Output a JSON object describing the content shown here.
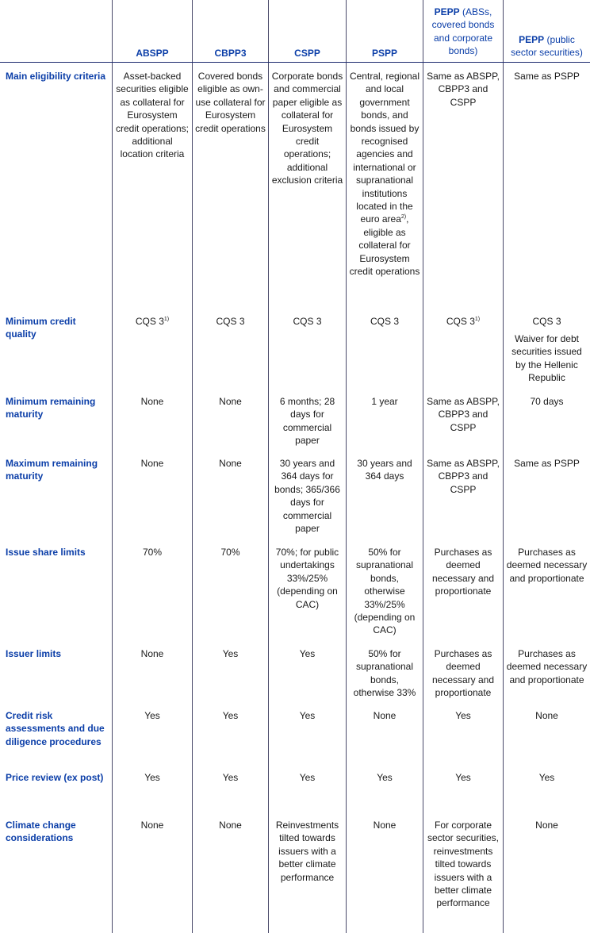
{
  "header": {
    "abspp": "ABSPP",
    "cbpp3": "CBPP3",
    "cspp": "CSPP",
    "pspp": "PSPP",
    "pepp_a_bold": "PEPP",
    "pepp_a_rest": " (ABSs, covered bonds and corporate bonds)",
    "pepp_b_bold": "PEPP",
    "pepp_b_rest": " (public sector securities)"
  },
  "rows": [
    {
      "label": "Main eligibility criteria",
      "abspp": "Asset-backed securities eligible as collateral for Eurosystem credit operations; additional location criteria",
      "cbpp3": "Covered bonds eligible as own-use collateral for Eurosystem credit operations",
      "cspp": "Corporate bonds and commercial paper eligible as collateral for Eurosystem credit operations; additional exclusion criteria",
      "pspp_a": "Central, regional and local government bonds, and bonds issued by recognised agencies and international or supranational institutions located in the euro area",
      "pspp_sup": "2)",
      "pspp_b": ", eligible as collateral for Eurosystem credit operations",
      "pepp_a": "Same as ABSPP, CBPP3 and CSPP",
      "pepp_b": "Same as PSPP"
    },
    {
      "label": "Minimum credit quality",
      "abspp": "CQS 3",
      "abspp_sup": "1)",
      "cbpp3": "CQS 3",
      "cspp": "CQS 3",
      "pspp": "CQS 3",
      "pepp_a": "CQS 3",
      "pepp_a_sup": "1)",
      "pepp_b": "CQS 3",
      "pepp_b_note": "Waiver for debt securities issued by the Hellenic Republic"
    },
    {
      "label": "Minimum remaining maturity",
      "abspp": "None",
      "cbpp3": "None",
      "cspp": "6 months; 28 days for commercial paper",
      "pspp": "1 year",
      "pepp_a": "Same as ABSPP, CBPP3 and CSPP",
      "pepp_b": "70 days"
    },
    {
      "label": "Maximum remaining maturity",
      "abspp": "None",
      "cbpp3": "None",
      "cspp": "30 years and 364 days for bonds; 365/366 days for commercial paper",
      "pspp": "30 years and 364 days",
      "pepp_a": "Same as ABSPP, CBPP3 and CSPP",
      "pepp_b": "Same as PSPP"
    },
    {
      "label": "Issue share limits",
      "abspp": "70%",
      "cbpp3": "70%",
      "cspp": "70%; for public undertakings 33%/25% (depending on CAC)",
      "pspp": "50% for supranational bonds, otherwise 33%/25% (depending on CAC)",
      "pepp_a": "Purchases as deemed necessary and proportionate",
      "pepp_b": "Purchases as deemed necessary and proportionate"
    },
    {
      "label": "Issuer limits",
      "abspp": "None",
      "cbpp3": "Yes",
      "cspp": "Yes",
      "pspp": "50% for supranational bonds, otherwise 33%",
      "pepp_a": "Purchases as deemed necessary and proportionate",
      "pepp_b": "Purchases as deemed necessary and proportionate"
    },
    {
      "label": "Credit risk assessments and due diligence procedures",
      "abspp": "Yes",
      "cbpp3": "Yes",
      "cspp": "Yes",
      "pspp": "None",
      "pepp_a": "Yes",
      "pepp_b": "None"
    },
    {
      "label": "Price review (ex post)",
      "abspp": "Yes",
      "cbpp3": "Yes",
      "cspp": "Yes",
      "pspp": "Yes",
      "pepp_a": "Yes",
      "pepp_b": "Yes"
    },
    {
      "label": "Climate change considerations",
      "abspp": "None",
      "cbpp3": "None",
      "cspp": "Reinvestments tilted towards issuers with a better climate performance",
      "pspp": "None",
      "pepp_a": "For corporate sector securities, reinvestments tilted towards issuers with a better climate performance",
      "pepp_b": "None"
    }
  ]
}
